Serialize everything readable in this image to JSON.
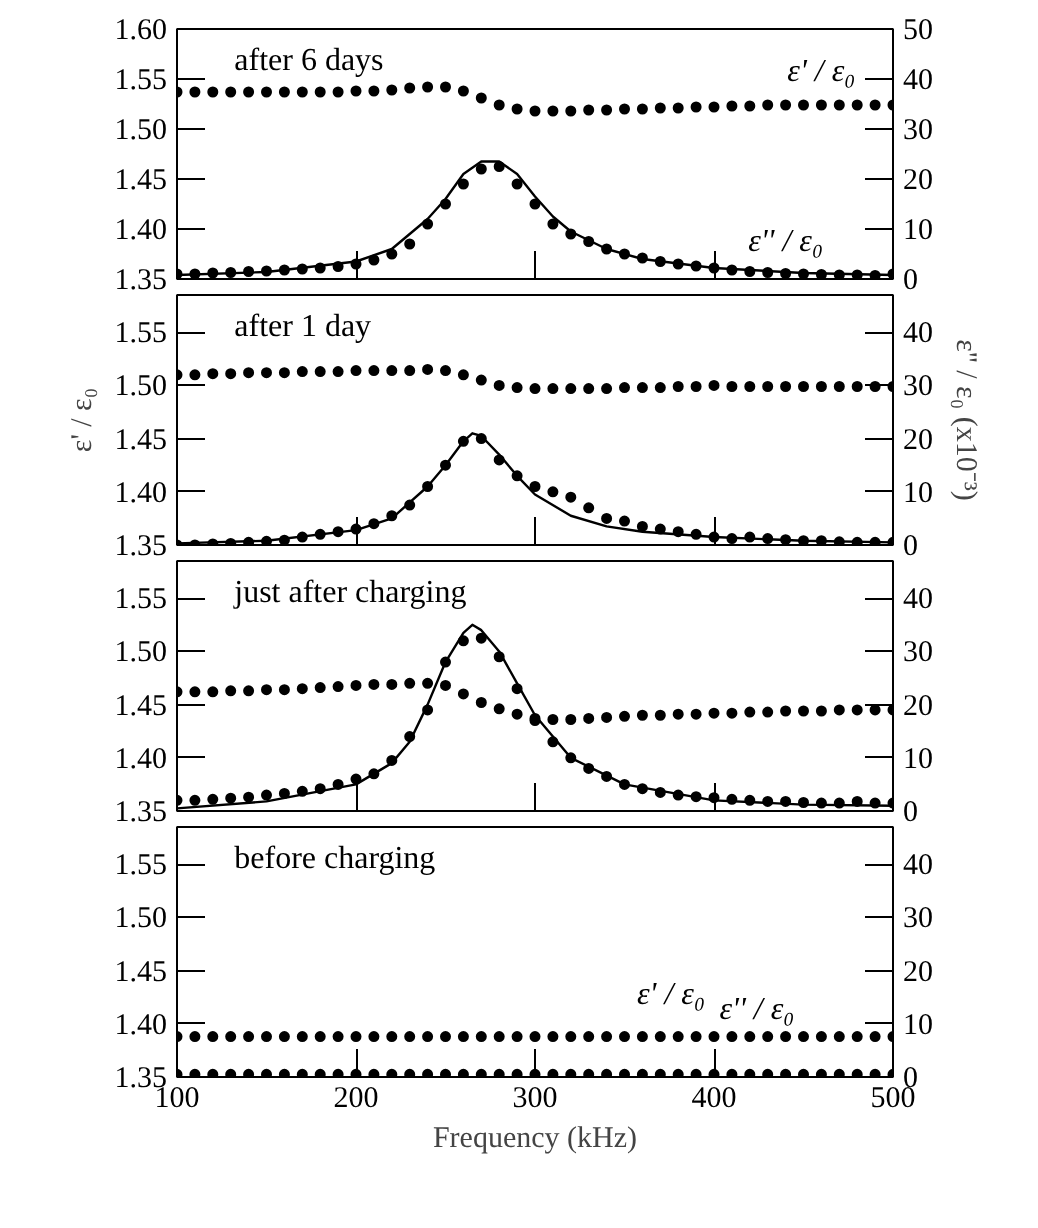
{
  "chart_data": [
    {
      "type": "scatter",
      "title": "after 6 days",
      "x": [
        100,
        110,
        120,
        130,
        140,
        150,
        160,
        170,
        180,
        190,
        200,
        210,
        220,
        230,
        240,
        250,
        260,
        270,
        280,
        290,
        300,
        310,
        320,
        330,
        340,
        350,
        360,
        370,
        380,
        390,
        400,
        410,
        420,
        430,
        440,
        450,
        460,
        470,
        480,
        490,
        500
      ],
      "xlim": [
        100,
        500
      ],
      "ylim": [
        1.35,
        1.6
      ],
      "y2lim": [
        0,
        50
      ],
      "xticks": [
        100,
        200,
        300,
        400,
        500
      ],
      "yticks": [
        1.35,
        {
          "value": 1.4,
          "label": "1.40"
        },
        1.45,
        {
          "value": 1.5,
          "label": "1.50"
        },
        1.55,
        {
          "value": 1.6,
          "label": "1.60"
        }
      ],
      "y2ticks": [
        0,
        10,
        20,
        30,
        40,
        50
      ],
      "tick_labels": "y",
      "marker": "circle",
      "line_style": "solid",
      "series": [
        {
          "color": "#000000",
          "values": [
            1.537,
            1.537,
            1.537,
            1.537,
            1.537,
            1.537,
            1.537,
            1.537,
            1.537,
            1.537,
            1.538,
            1.538,
            1.539,
            1.541,
            1.542,
            1.542,
            1.538,
            1.531,
            1.524,
            1.52,
            1.518,
            1.518,
            1.518,
            1.519,
            1.519,
            1.52,
            1.52,
            1.521,
            1.521,
            1.522,
            1.522,
            1.523,
            1.523,
            1.524,
            1.524,
            1.524,
            1.524,
            1.524,
            1.524,
            1.524,
            1.524
          ]
        },
        {
          "color": "#000000",
          "axis": "y2",
          "values": [
            1.0,
            1.0,
            1.2,
            1.3,
            1.5,
            1.6,
            1.8,
            2.0,
            2.2,
            2.5,
            3.0,
            3.8,
            5,
            7,
            11,
            15,
            19,
            22,
            22.5,
            19,
            15,
            11,
            9,
            7.5,
            6,
            5,
            4.2,
            3.5,
            3,
            2.6,
            2.2,
            1.8,
            1.5,
            1.3,
            1.1,
            1.0,
            0.9,
            0.8,
            0.8,
            0.7,
            1.0
          ]
        },
        {
          "type": "line",
          "marker": "none",
          "color": "#000000",
          "axis": "y2",
          "x": [
            100,
            150,
            200,
            220,
            240,
            250,
            260,
            270,
            280,
            290,
            300,
            310,
            320,
            340,
            360,
            400,
            450,
            500
          ],
          "values": [
            0.8,
            1.4,
            3.5,
            6,
            12,
            16,
            21,
            23.5,
            23.5,
            21,
            16.5,
            12.5,
            9.5,
            6,
            4,
            2.2,
            1.2,
            0.8
          ]
        }
      ],
      "annotations": [
        "ε' / ε₀",
        "ε'' / ε₀"
      ]
    },
    {
      "type": "scatter",
      "title": "after 1 day",
      "ylabel": "ε' / ε₀",
      "y2label": "ε'' / ε₀ (x10⁻³)",
      "x": [
        100,
        110,
        120,
        130,
        140,
        150,
        160,
        170,
        180,
        190,
        200,
        210,
        220,
        230,
        240,
        250,
        260,
        270,
        280,
        290,
        300,
        310,
        320,
        330,
        340,
        350,
        360,
        370,
        380,
        390,
        400,
        410,
        420,
        430,
        440,
        450,
        460,
        470,
        480,
        490,
        500
      ],
      "xlim": [
        100,
        500
      ],
      "ylim": [
        1.35,
        1.585
      ],
      "y2lim": [
        0,
        47
      ],
      "xticks": [
        100,
        200,
        300,
        400,
        500
      ],
      "yticks": [
        1.35,
        {
          "value": 1.4,
          "label": "1.40"
        },
        1.45,
        {
          "value": 1.5,
          "label": "1.50"
        },
        1.55
      ],
      "y2ticks": [
        0,
        10,
        20,
        30,
        40
      ],
      "tick_labels": "y",
      "marker": "circle",
      "line_style": "solid",
      "series": [
        {
          "color": "#000000",
          "values": [
            1.51,
            1.51,
            1.511,
            1.511,
            1.512,
            1.512,
            1.512,
            1.513,
            1.513,
            1.513,
            1.514,
            1.514,
            1.514,
            1.514,
            1.515,
            1.514,
            1.51,
            1.505,
            1.5,
            1.498,
            1.497,
            1.497,
            1.497,
            1.497,
            1.497,
            1.498,
            1.498,
            1.498,
            1.499,
            1.499,
            1.5,
            1.499,
            1.499,
            1.499,
            1.499,
            1.499,
            1.499,
            1.499,
            1.499,
            1.499,
            1.499
          ]
        },
        {
          "color": "#000000",
          "axis": "y2",
          "values": [
            0,
            0,
            0.2,
            0.3,
            0.5,
            0.7,
            0.9,
            1.5,
            2,
            2.5,
            3,
            4,
            5.5,
            7.5,
            11,
            15,
            19.5,
            20,
            16,
            13,
            11,
            10,
            9,
            7,
            5,
            4.5,
            3.5,
            3,
            2.5,
            2,
            1.5,
            1.2,
            1.5,
            1.2,
            1,
            0.8,
            0.8,
            0.6,
            0.5,
            0.5,
            0.5
          ]
        },
        {
          "type": "line",
          "marker": "none",
          "color": "#000000",
          "axis": "y2",
          "x": [
            100,
            150,
            200,
            220,
            240,
            250,
            260,
            265,
            270,
            280,
            290,
            300,
            320,
            340,
            360,
            400,
            450,
            500
          ],
          "values": [
            0.3,
            0.8,
            2.8,
            5,
            11,
            15,
            19.5,
            21,
            20.5,
            17,
            13,
            9.5,
            5.5,
            3.5,
            2.5,
            1.5,
            0.8,
            0.5
          ]
        }
      ]
    },
    {
      "type": "scatter",
      "title": "just after charging",
      "x": [
        100,
        110,
        120,
        130,
        140,
        150,
        160,
        170,
        180,
        190,
        200,
        210,
        220,
        230,
        240,
        250,
        260,
        270,
        280,
        290,
        300,
        310,
        320,
        330,
        340,
        350,
        360,
        370,
        380,
        390,
        400,
        410,
        420,
        430,
        440,
        450,
        460,
        470,
        480,
        490,
        500
      ],
      "xlim": [
        100,
        500
      ],
      "ylim": [
        1.35,
        1.585
      ],
      "y2lim": [
        0,
        47
      ],
      "xticks": [
        100,
        200,
        300,
        400,
        500
      ],
      "yticks": [
        1.35,
        {
          "value": 1.4,
          "label": "1.40"
        },
        1.45,
        {
          "value": 1.5,
          "label": "1.50"
        },
        1.55
      ],
      "y2ticks": [
        0,
        10,
        20,
        30,
        40
      ],
      "tick_labels": "y",
      "marker": "circle",
      "line_style": "solid",
      "series": [
        {
          "color": "#000000",
          "values": [
            1.462,
            1.462,
            1.462,
            1.463,
            1.463,
            1.464,
            1.464,
            1.465,
            1.466,
            1.467,
            1.468,
            1.469,
            1.469,
            1.47,
            1.47,
            1.468,
            1.46,
            1.452,
            1.446,
            1.441,
            1.437,
            1.436,
            1.436,
            1.437,
            1.438,
            1.439,
            1.44,
            1.44,
            1.441,
            1.441,
            1.442,
            1.442,
            1.443,
            1.443,
            1.444,
            1.444,
            1.444,
            1.445,
            1.445,
            1.445,
            1.445
          ]
        },
        {
          "color": "#000000",
          "axis": "y2",
          "values": [
            2,
            2,
            2.2,
            2.4,
            2.6,
            3,
            3.3,
            3.7,
            4.2,
            5,
            6,
            7,
            9.5,
            14,
            19,
            28,
            32,
            32.5,
            29,
            23,
            17,
            13,
            10,
            8,
            6.5,
            5,
            4.2,
            3.5,
            3,
            2.7,
            2.5,
            2.2,
            2,
            1.8,
            1.8,
            1.6,
            1.5,
            1.5,
            1.8,
            1.5,
            1.5
          ]
        },
        {
          "type": "line",
          "marker": "none",
          "color": "#000000",
          "axis": "y2",
          "x": [
            100,
            150,
            200,
            220,
            230,
            240,
            250,
            260,
            265,
            270,
            280,
            290,
            300,
            320,
            350,
            400,
            450,
            500
          ],
          "values": [
            0.5,
            1.8,
            5,
            9,
            13,
            20,
            28,
            33.5,
            35,
            34,
            30,
            24,
            18,
            10,
            5,
            2,
            1.2,
            1
          ]
        }
      ]
    },
    {
      "type": "scatter",
      "title": "before charging",
      "xlabel": "Frequency (kHz)",
      "x": [
        100,
        110,
        120,
        130,
        140,
        150,
        160,
        170,
        180,
        190,
        200,
        210,
        220,
        230,
        240,
        250,
        260,
        270,
        280,
        290,
        300,
        310,
        320,
        330,
        340,
        350,
        360,
        370,
        380,
        390,
        400,
        410,
        420,
        430,
        440,
        450,
        460,
        470,
        480,
        490,
        500
      ],
      "xlim": [
        100,
        500
      ],
      "ylim": [
        1.35,
        1.585
      ],
      "y2lim": [
        0,
        47
      ],
      "xticks": [
        100,
        200,
        300,
        400,
        500
      ],
      "yticks": [
        1.35,
        {
          "value": 1.4,
          "label": "1.40"
        },
        1.45,
        {
          "value": 1.5,
          "label": "1.50"
        },
        1.55
      ],
      "y2ticks": [
        0,
        10,
        20,
        30,
        40
      ],
      "marker": "circle",
      "series": [
        {
          "color": "#000000",
          "values": [
            1.388,
            1.388,
            1.388,
            1.388,
            1.388,
            1.388,
            1.388,
            1.388,
            1.388,
            1.388,
            1.388,
            1.388,
            1.388,
            1.388,
            1.388,
            1.388,
            1.388,
            1.388,
            1.388,
            1.388,
            1.388,
            1.388,
            1.388,
            1.388,
            1.388,
            1.388,
            1.388,
            1.388,
            1.388,
            1.388,
            1.388,
            1.388,
            1.388,
            1.388,
            1.388,
            1.388,
            1.388,
            1.388,
            1.388,
            1.388,
            1.388
          ]
        },
        {
          "color": "#000000",
          "axis": "y2",
          "values": [
            0.5,
            0.5,
            0.5,
            0.5,
            0.5,
            0.5,
            0.5,
            0.5,
            0.5,
            0.5,
            0.5,
            0.5,
            0.5,
            0.5,
            0.5,
            0.5,
            0.5,
            0.5,
            0.5,
            0.5,
            0.5,
            0.5,
            0.5,
            0.5,
            0.5,
            0.5,
            0.5,
            0.5,
            0.5,
            0.5,
            0.5,
            0.5,
            0.5,
            0.5,
            0.5,
            0.5,
            0.5,
            0.5,
            0.5,
            0.5,
            0.5
          ]
        }
      ],
      "annotations": [
        "ε' / ε₀",
        "ε'' / ε₀"
      ]
    }
  ]
}
